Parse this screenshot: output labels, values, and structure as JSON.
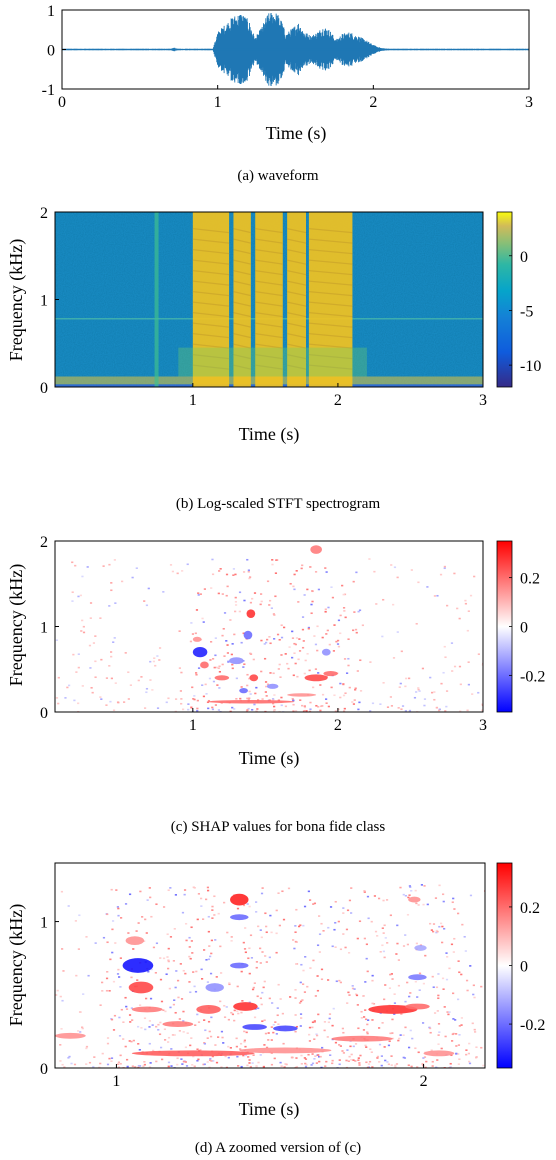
{
  "chart_data": [
    {
      "id": "a",
      "type": "line",
      "caption": "(a) waveform",
      "xlabel": "Time (s)",
      "ylabel": "",
      "xlim": [
        0,
        3
      ],
      "ylim": [
        -1,
        1
      ],
      "xticks": [
        0,
        1,
        2,
        3
      ],
      "yticks": [
        -1,
        0,
        1
      ],
      "grid": false,
      "series": [
        {
          "color": "#1f77b4",
          "envelope": [
            [
              0.0,
              0.02
            ],
            [
              0.7,
              0.02
            ],
            [
              0.72,
              0.05
            ],
            [
              0.74,
              0.02
            ],
            [
              0.97,
              0.02
            ],
            [
              1.0,
              0.45
            ],
            [
              1.05,
              0.65
            ],
            [
              1.1,
              0.85
            ],
            [
              1.15,
              0.95
            ],
            [
              1.2,
              0.75
            ],
            [
              1.24,
              0.3
            ],
            [
              1.28,
              0.55
            ],
            [
              1.32,
              0.9
            ],
            [
              1.36,
              1.0
            ],
            [
              1.4,
              0.85
            ],
            [
              1.44,
              0.4
            ],
            [
              1.48,
              0.55
            ],
            [
              1.52,
              0.7
            ],
            [
              1.56,
              0.45
            ],
            [
              1.6,
              0.35
            ],
            [
              1.64,
              0.45
            ],
            [
              1.68,
              0.6
            ],
            [
              1.72,
              0.5
            ],
            [
              1.76,
              0.25
            ],
            [
              1.8,
              0.4
            ],
            [
              1.85,
              0.45
            ],
            [
              1.9,
              0.35
            ],
            [
              1.95,
              0.25
            ],
            [
              2.0,
              0.12
            ],
            [
              2.05,
              0.04
            ],
            [
              2.1,
              0.02
            ],
            [
              3.0,
              0.02
            ]
          ]
        }
      ]
    },
    {
      "id": "b",
      "type": "heatmap",
      "caption": "(b) Log-scaled STFT spectrogram",
      "xlabel": "Time (s)",
      "ylabel": "Frequency (kHz)",
      "xlim": [
        0.05,
        3
      ],
      "ylim": [
        0,
        2
      ],
      "xticks": [
        1,
        2,
        3
      ],
      "yticks": [
        0,
        1,
        2
      ],
      "colorbar": {
        "ticks": [
          0,
          -5,
          -10
        ],
        "range": [
          -12,
          4
        ],
        "colormap": "parula"
      },
      "speech_segments": [
        [
          1.0,
          1.25
        ],
        [
          1.28,
          1.4
        ],
        [
          1.43,
          1.62
        ],
        [
          1.65,
          1.78
        ],
        [
          1.8,
          2.1
        ]
      ],
      "click_time": 0.75
    },
    {
      "id": "c",
      "type": "heatmap",
      "caption": "(c) SHAP values for bona fide class",
      "xlabel": "Time (s)",
      "ylabel": "Frequency (kHz)",
      "xlim": [
        0.05,
        3
      ],
      "ylim": [
        0,
        2
      ],
      "xticks": [
        1,
        2,
        3
      ],
      "yticks": [
        0,
        1,
        2
      ],
      "colorbar": {
        "ticks": [
          0.2,
          0,
          -0.2
        ],
        "range": [
          -0.35,
          0.35
        ],
        "colormap": "blue-white-red"
      },
      "blobs": [
        [
          1.05,
          0.7,
          0.05,
          0.06,
          -0.3
        ],
        [
          1.03,
          0.85,
          0.03,
          0.03,
          0.15
        ],
        [
          1.08,
          0.55,
          0.03,
          0.04,
          0.2
        ],
        [
          1.4,
          1.15,
          0.03,
          0.05,
          0.28
        ],
        [
          1.38,
          0.9,
          0.03,
          0.05,
          -0.2
        ],
        [
          1.42,
          0.4,
          0.03,
          0.04,
          0.25
        ],
        [
          1.2,
          0.4,
          0.05,
          0.03,
          0.2
        ],
        [
          1.35,
          0.25,
          0.03,
          0.03,
          -0.2
        ],
        [
          1.55,
          0.3,
          0.04,
          0.03,
          -0.15
        ],
        [
          1.85,
          0.4,
          0.08,
          0.04,
          0.25
        ],
        [
          1.92,
          0.7,
          0.03,
          0.04,
          -0.15
        ],
        [
          1.85,
          1.9,
          0.04,
          0.05,
          0.18
        ],
        [
          1.4,
          0.12,
          0.3,
          0.02,
          0.2
        ],
        [
          1.3,
          0.6,
          0.05,
          0.04,
          -0.15
        ],
        [
          1.95,
          0.45,
          0.05,
          0.03,
          0.2
        ],
        [
          1.75,
          0.2,
          0.1,
          0.02,
          0.15
        ]
      ]
    },
    {
      "id": "d",
      "type": "heatmap",
      "caption": "(d) A zoomed version of (c)",
      "xlabel": "Time (s)",
      "ylabel": "Frequency (kHz)",
      "xlim": [
        0.8,
        2.2
      ],
      "ylim": [
        0,
        1.4
      ],
      "xticks": [
        1,
        2
      ],
      "yticks": [
        0,
        1
      ],
      "colorbar": {
        "ticks": [
          0.2,
          0,
          -0.2
        ],
        "range": [
          -0.35,
          0.35
        ],
        "colormap": "blue-white-red"
      },
      "blobs": [
        [
          1.07,
          0.7,
          0.05,
          0.05,
          -0.32
        ],
        [
          1.06,
          0.87,
          0.03,
          0.03,
          0.15
        ],
        [
          1.08,
          0.55,
          0.04,
          0.04,
          0.25
        ],
        [
          1.4,
          1.15,
          0.03,
          0.04,
          0.3
        ],
        [
          1.4,
          1.03,
          0.03,
          0.02,
          -0.2
        ],
        [
          1.4,
          0.7,
          0.03,
          0.02,
          -0.2
        ],
        [
          1.42,
          0.42,
          0.04,
          0.03,
          0.28
        ],
        [
          1.45,
          0.28,
          0.04,
          0.02,
          -0.25
        ],
        [
          1.55,
          0.27,
          0.04,
          0.02,
          -0.25
        ],
        [
          1.3,
          0.4,
          0.04,
          0.03,
          0.22
        ],
        [
          1.2,
          0.3,
          0.05,
          0.02,
          0.18
        ],
        [
          1.32,
          0.55,
          0.03,
          0.03,
          -0.15
        ],
        [
          1.9,
          0.4,
          0.08,
          0.03,
          0.28
        ],
        [
          1.98,
          0.42,
          0.04,
          0.02,
          0.2
        ],
        [
          1.98,
          0.62,
          0.03,
          0.02,
          -0.18
        ],
        [
          1.8,
          0.2,
          0.1,
          0.02,
          0.18
        ],
        [
          1.25,
          0.1,
          0.2,
          0.02,
          0.22
        ],
        [
          1.55,
          0.12,
          0.15,
          0.02,
          0.15
        ],
        [
          0.85,
          0.22,
          0.05,
          0.02,
          0.15
        ],
        [
          1.1,
          0.4,
          0.05,
          0.02,
          0.18
        ],
        [
          1.97,
          1.15,
          0.02,
          0.02,
          0.15
        ],
        [
          1.99,
          0.82,
          0.02,
          0.02,
          -0.12
        ],
        [
          2.05,
          0.1,
          0.05,
          0.02,
          0.15
        ]
      ]
    }
  ]
}
